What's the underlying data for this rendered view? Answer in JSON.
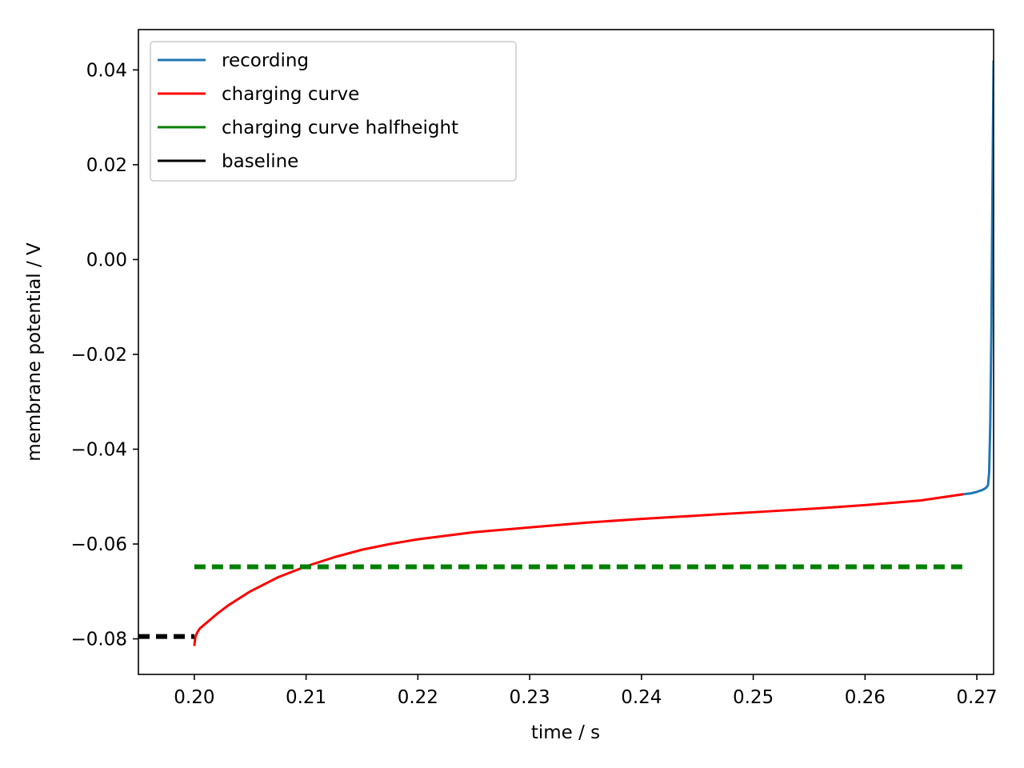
{
  "chart_data": {
    "type": "line",
    "xlabel": "time / s",
    "ylabel": "membrane potential / V",
    "xlim": [
      0.195,
      0.2715
    ],
    "ylim": [
      -0.0875,
      0.0485
    ],
    "x_ticks": [
      0.2,
      0.21,
      0.22,
      0.23,
      0.24,
      0.25,
      0.26,
      0.27
    ],
    "x_tick_labels": [
      "0.20",
      "0.21",
      "0.22",
      "0.23",
      "0.24",
      "0.25",
      "0.26",
      "0.27"
    ],
    "y_ticks": [
      -0.08,
      -0.06,
      -0.04,
      -0.02,
      0.0,
      0.02,
      0.04
    ],
    "y_tick_labels": [
      "−0.08",
      "−0.06",
      "−0.04",
      "−0.02",
      "0.00",
      "0.02",
      "0.04"
    ],
    "grid": false,
    "legend_position": "top-left",
    "series": [
      {
        "name": "recording",
        "color": "#1f77b4",
        "style": "solid",
        "x": [
          0.2688,
          0.2695,
          0.27,
          0.2705,
          0.2708,
          0.271,
          0.2711,
          0.2712,
          0.2713,
          0.2714,
          0.2715
        ],
        "y": [
          -0.0495,
          -0.0493,
          -0.049,
          -0.0486,
          -0.0482,
          -0.0476,
          -0.045,
          -0.035,
          -0.015,
          0.015,
          0.042
        ]
      },
      {
        "name": "charging curve",
        "color": "#ff0000",
        "style": "solid",
        "x": [
          0.2,
          0.2001,
          0.2003,
          0.2005,
          0.201,
          0.202,
          0.203,
          0.205,
          0.2075,
          0.21,
          0.2125,
          0.215,
          0.2175,
          0.22,
          0.225,
          0.23,
          0.235,
          0.24,
          0.245,
          0.25,
          0.255,
          0.26,
          0.265,
          0.2688
        ],
        "y": [
          -0.0815,
          -0.0795,
          -0.0785,
          -0.0778,
          -0.0768,
          -0.0748,
          -0.073,
          -0.07,
          -0.067,
          -0.0647,
          -0.0628,
          -0.0612,
          -0.06,
          -0.059,
          -0.0575,
          -0.0565,
          -0.0555,
          -0.0547,
          -0.054,
          -0.0533,
          -0.0526,
          -0.0518,
          -0.0508,
          -0.0495
        ]
      },
      {
        "name": "charging curve halfheight",
        "color": "#008000",
        "style": "dashed",
        "x": [
          0.2,
          0.2688
        ],
        "y": [
          -0.0648,
          -0.0648
        ]
      },
      {
        "name": "baseline",
        "color": "#000000",
        "style": "dashed",
        "x": [
          0.195,
          0.2
        ],
        "y": [
          -0.0795,
          -0.0795
        ]
      }
    ]
  }
}
